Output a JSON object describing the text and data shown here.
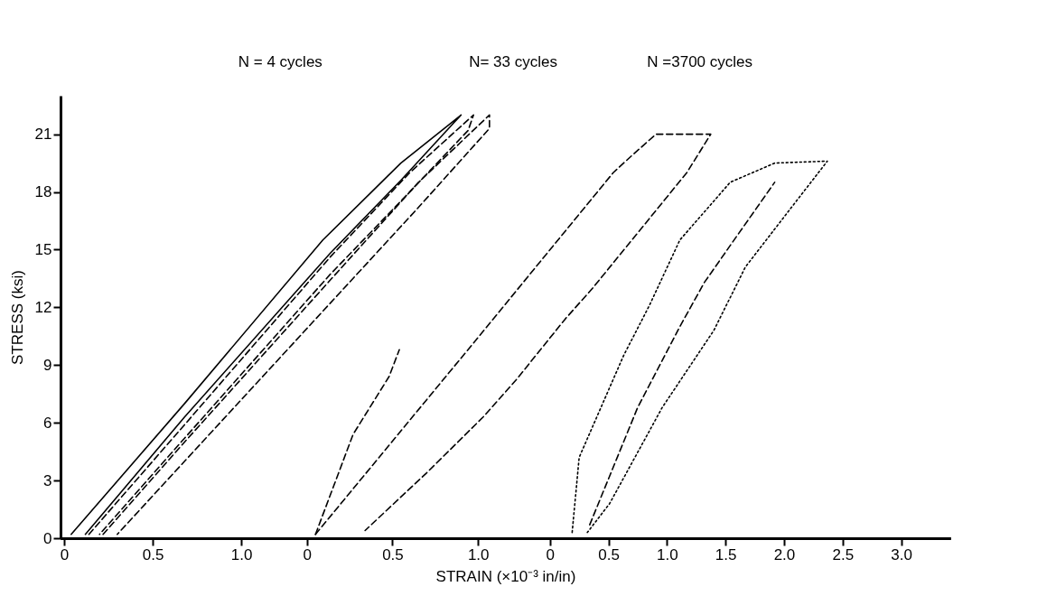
{
  "chart_data": [
    {
      "type": "line",
      "title": "N = 4 cycles",
      "xlabel": "STRAIN (×10⁻³ in/in)",
      "ylabel": "STRESS (ksi)",
      "xlim": [
        -0.02,
        5.0
      ],
      "ylim": [
        0,
        23
      ],
      "xticks": [
        0,
        0.5,
        {
          "value": 1,
          "label": "1.0"
        }
      ],
      "yticks": [
        0,
        3,
        6,
        9,
        12,
        15,
        18,
        21
      ],
      "marker": "none",
      "series": [
        {
          "color": "#000000",
          "line_style": "solid",
          "x": [
            0.04,
            0.68,
            1.46,
            1.9,
            2.24,
            2.2,
            1.9,
            1.5,
            0.68,
            0.12
          ],
          "values": [
            0.2,
            7.0,
            15.5,
            19.5,
            22.0,
            21.6,
            18.6,
            14.8,
            6.3,
            0.2
          ]
        },
        {
          "color": "#000000",
          "line_style": "dashed",
          "x": [
            0.14,
            0.68,
            1.5,
            1.95,
            2.31,
            2.28,
            1.95,
            1.5,
            0.68,
            0.2
          ],
          "values": [
            0.2,
            5.9,
            14.6,
            19.0,
            22.0,
            21.2,
            18.0,
            13.7,
            5.2,
            0.2
          ]
        },
        {
          "color": "#000000",
          "line_style": "dashed",
          "x": [
            0.22,
            0.68,
            1.5,
            2.0,
            2.4,
            2.4,
            2.0,
            1.5,
            0.68,
            0.3
          ],
          "values": [
            0.2,
            5.0,
            13.4,
            18.5,
            22.0,
            21.3,
            17.2,
            12.2,
            4.0,
            0.2
          ]
        }
      ]
    },
    {
      "type": "line",
      "title": "N= 33 cycles",
      "xlim": [
        -1.44,
        3.76
      ],
      "ylim": [
        0,
        23
      ],
      "xticks": [
        0,
        0.5,
        {
          "value": 1,
          "label": "1.0"
        }
      ],
      "tick_labels": "x",
      "marker": "none",
      "series": [
        {
          "color": "#000000",
          "line_style": "dashed",
          "x": [
            0.05,
            0.96,
            1.79,
            1.9,
            2.04,
            2.36,
            2.22,
            1.67,
            1.51,
            1.22,
            1.03,
            0.7,
            0.34
          ],
          "values": [
            0.2,
            10.0,
            19.0,
            19.9,
            21.0,
            21.0,
            19.0,
            13.0,
            11.4,
            8.2,
            6.3,
            3.4,
            0.4
          ]
        },
        {
          "color": "#000000",
          "line_style": "dashed",
          "x": [
            0.05,
            0.27,
            0.48,
            0.54
          ],
          "values": [
            0.2,
            5.4,
            8.4,
            9.8
          ]
        }
      ]
    },
    {
      "type": "line",
      "title": "N =3700 cycles",
      "xlim": [
        -4.18,
        3.42
      ],
      "ylim": [
        0,
        23
      ],
      "xticks": [
        0,
        0.5,
        {
          "value": 1,
          "label": "1.0"
        },
        1.5,
        {
          "value": 2,
          "label": "2.0"
        },
        2.5,
        {
          "value": 3,
          "label": "3.0"
        }
      ],
      "tick_labels": "x",
      "marker": "none",
      "series": [
        {
          "color": "#000000",
          "line_style": "dotted",
          "x": [
            0.19,
            0.25,
            0.63,
            0.85,
            1.11,
            1.54,
            1.92,
            2.37,
            2.14,
            1.67,
            1.4,
            0.96,
            0.51,
            0.32
          ],
          "values": [
            0.3,
            4.2,
            9.5,
            12.1,
            15.5,
            18.5,
            19.5,
            19.6,
            17.8,
            14.1,
            10.8,
            6.8,
            1.8,
            0.3
          ]
        },
        {
          "color": "#000000",
          "line_style": "dashed",
          "x": [
            0.34,
            0.75,
            1.11,
            1.32,
            1.55,
            1.92
          ],
          "values": [
            0.7,
            6.8,
            11.0,
            13.3,
            15.3,
            18.5
          ]
        }
      ]
    }
  ]
}
